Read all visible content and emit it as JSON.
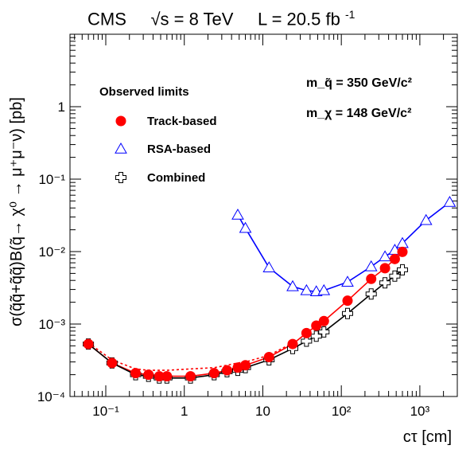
{
  "header": {
    "experiment": "CMS",
    "energy_label": "√s = 8 TeV",
    "lumi_label": "L = 20.5 fb",
    "lumi_exp": "-1"
  },
  "axes": {
    "xlabel": "cτ [cm]",
    "ylabel": "σ(q̃q̃+q̃q̃)B(q̃→ χ⁰ → μ⁺μ⁻ν) [pb]"
  },
  "annotations": {
    "mass_squark": "m_q̃ = 350 GeV/c²",
    "mass_chi": "m_χ = 148 GeV/c²"
  },
  "legend": {
    "header": "Observed limits",
    "items": [
      "Track-based",
      "RSA-based",
      "Combined"
    ]
  },
  "chart_data": {
    "type": "scatter",
    "xscale": "log",
    "yscale": "log",
    "xlim": [
      0.035,
      3000
    ],
    "ylim": [
      0.0001,
      10
    ],
    "x_ticklabels": [
      "10⁻¹",
      "1",
      "10",
      "10²",
      "10³"
    ],
    "y_ticklabels": [
      "10⁻⁴",
      "10⁻³",
      "10⁻²",
      "10⁻¹",
      "1"
    ],
    "legend_position": "top-left",
    "series": [
      {
        "name": "Track-based",
        "color": "#ff0000",
        "marker": "filled-circle",
        "x": [
          0.06,
          0.12,
          0.24,
          0.35,
          0.48,
          0.6,
          1.2,
          2.4,
          3.5,
          4.8,
          6,
          12,
          24,
          36,
          48,
          60,
          120,
          240,
          360,
          480,
          600
        ],
        "y": [
          0.00053,
          0.00029,
          0.00021,
          0.0002,
          0.00019,
          0.00019,
          0.00019,
          0.00021,
          0.00023,
          0.00025,
          0.00027,
          0.00035,
          0.00053,
          0.00075,
          0.00095,
          0.0011,
          0.0021,
          0.0042,
          0.0059,
          0.0079,
          0.0099
        ]
      },
      {
        "name": "RSA-based",
        "color": "#0000ff",
        "marker": "open-triangle",
        "x": [
          4.8,
          6,
          12,
          24,
          36,
          48,
          60,
          120,
          240,
          360,
          480,
          600,
          1200,
          2400
        ],
        "y": [
          0.032,
          0.021,
          0.006,
          0.0033,
          0.0029,
          0.0028,
          0.0029,
          0.0038,
          0.0062,
          0.0085,
          0.0105,
          0.013,
          0.027,
          0.048
        ]
      },
      {
        "name": "Combined",
        "color": "#000000",
        "marker": "open-cross",
        "x": [
          0.06,
          0.12,
          0.24,
          0.35,
          0.48,
          0.6,
          1.2,
          2.4,
          3.5,
          4.8,
          6,
          12,
          24,
          36,
          48,
          60,
          120,
          240,
          360,
          480,
          600
        ],
        "y": [
          0.00053,
          0.00029,
          0.0002,
          0.00019,
          0.00018,
          0.00018,
          0.00018,
          0.0002,
          0.00022,
          0.00023,
          0.00025,
          0.00032,
          0.00046,
          0.00058,
          0.00068,
          0.00078,
          0.0014,
          0.0026,
          0.0037,
          0.0046,
          0.0056
        ]
      }
    ],
    "expected_curve": {
      "color": "#ff0000",
      "style": "dotted",
      "x": [
        0.06,
        0.12,
        0.24,
        0.35,
        0.48,
        0.6,
        1.2,
        2.4,
        3.5,
        4.8,
        6,
        12,
        24
      ],
      "y": [
        0.00055,
        0.00032,
        0.00024,
        0.00023,
        0.00023,
        0.00023,
        0.00024,
        0.00025,
        0.00027,
        0.00029,
        0.0003,
        0.00037,
        0.00055
      ]
    }
  }
}
